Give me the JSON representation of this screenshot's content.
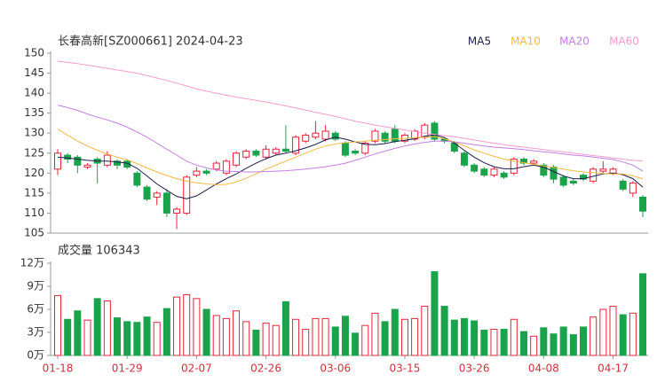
{
  "chart_data": {
    "type": "candlestick",
    "title": "长春高新[SZ000661] 2024-04-23",
    "categories": [
      "01-18",
      null,
      null,
      null,
      null,
      null,
      null,
      "01-29",
      null,
      null,
      null,
      null,
      null,
      null,
      "02-07",
      null,
      null,
      null,
      null,
      null,
      null,
      "02-26",
      null,
      null,
      null,
      null,
      null,
      null,
      "03-06",
      null,
      null,
      null,
      null,
      null,
      null,
      "03-15",
      null,
      null,
      null,
      null,
      null,
      null,
      "03-26",
      null,
      null,
      null,
      null,
      null,
      null,
      "04-08",
      null,
      null,
      null,
      null,
      null,
      null,
      "04-17",
      null,
      null,
      null
    ],
    "ylim": [
      105,
      150
    ],
    "yticks": [
      105,
      110,
      115,
      120,
      125,
      130,
      135,
      140,
      145,
      150
    ],
    "up_color": "#e8233a",
    "down_color": "#1aa34a",
    "open": [
      121,
      124.5,
      124,
      121.5,
      123.5,
      122,
      123,
      123,
      120,
      116.5,
      114,
      115,
      110,
      110,
      119.5,
      120.5,
      121,
      120,
      122,
      124,
      125.5,
      124,
      125,
      126,
      125,
      128,
      129,
      128.5,
      130,
      127.5,
      125.5,
      125,
      128,
      130,
      131,
      128,
      128.5,
      129,
      132.5,
      128.5,
      127.5,
      125,
      122,
      121,
      119.5,
      120,
      120,
      123.5,
      122.5,
      122,
      121.5,
      119,
      118,
      119.5,
      118,
      120.5,
      120,
      118,
      115,
      114
    ],
    "close": [
      125,
      123.5,
      122,
      122,
      122.5,
      124.5,
      122,
      121.5,
      117,
      113.5,
      115,
      110,
      111,
      119,
      120.5,
      120,
      122.5,
      123,
      125,
      125.5,
      124.5,
      126,
      126,
      125.5,
      129,
      129.5,
      130,
      130.5,
      128.5,
      124.5,
      125,
      127.5,
      130.5,
      128,
      128,
      129.5,
      130.5,
      132,
      128.5,
      128,
      125.5,
      122,
      120.5,
      119.5,
      121,
      119,
      123.5,
      122.5,
      123,
      119.5,
      118.5,
      117,
      117.5,
      118.5,
      121,
      121,
      121,
      116,
      117.5,
      110.5
    ],
    "high": [
      126,
      125,
      124.5,
      122.5,
      124,
      125.5,
      123.5,
      123.5,
      120.5,
      117,
      115.5,
      116,
      111.5,
      119.5,
      121.5,
      121,
      123,
      123.5,
      125.5,
      126,
      126,
      127,
      126.5,
      132,
      129.5,
      130,
      133,
      132,
      130.5,
      128,
      126,
      128,
      131,
      130.5,
      132,
      130,
      131,
      132.5,
      133,
      129,
      128,
      125.5,
      122.5,
      121.5,
      121.5,
      120.5,
      124,
      124,
      123.5,
      122.5,
      122,
      119.5,
      118.5,
      120,
      121.5,
      123,
      121.5,
      118.5,
      118,
      114.5
    ],
    "low": [
      119.5,
      122.5,
      120,
      121,
      117.5,
      121.5,
      121,
      121,
      116.5,
      113,
      112,
      109,
      106,
      109.5,
      119,
      119.5,
      120.5,
      119.5,
      121.5,
      123.5,
      124,
      123.5,
      124.5,
      125,
      124.5,
      127.5,
      128.5,
      128,
      128,
      124,
      124.5,
      124.5,
      127.5,
      127.5,
      127.5,
      127.5,
      128,
      128.5,
      128,
      127.5,
      125,
      121.5,
      120,
      119,
      119,
      118.5,
      119.5,
      122,
      122,
      119,
      117.5,
      116.5,
      117,
      118,
      117.5,
      120,
      119.5,
      115.5,
      114,
      109
    ],
    "ma": [
      {
        "name": "MA5",
        "color": "#1c1c4e",
        "values": [
          124,
          123.8,
          123.5,
          123.2,
          123,
          123,
          122.8,
          122.5,
          121.2,
          119.3,
          117.3,
          115.7,
          114.2,
          113.6,
          114.3,
          115.8,
          117.3,
          118.6,
          119.8,
          121.2,
          122.5,
          123.6,
          124.5,
          125,
          125.6,
          126.3,
          127.2,
          128.3,
          129,
          128.5,
          127.8,
          127.2,
          127.1,
          127.4,
          127.9,
          128.2,
          128.6,
          129.2,
          129.6,
          128.9,
          127.5,
          125.7,
          124,
          122.6,
          121.6,
          121.1,
          121.1,
          121.6,
          122,
          121.5,
          120.4,
          119.3,
          118.6,
          118.6,
          119.2,
          119.8,
          120,
          119.6,
          118.6,
          116.5
        ]
      },
      {
        "name": "MA10",
        "color": "#f5b942",
        "values": [
          131,
          129.5,
          128,
          126.8,
          125.7,
          124.8,
          124,
          123.3,
          122.4,
          121.3,
          120.3,
          119.4,
          118.6,
          118,
          117.6,
          117.3,
          117.1,
          117.2,
          117.8,
          118.7,
          119.8,
          121,
          122,
          123,
          124,
          125,
          126,
          126.8,
          127.3,
          127.6,
          127.8,
          128,
          128.2,
          128.4,
          128.6,
          128.7,
          128.9,
          129,
          129.1,
          128.6,
          127.8,
          126.8,
          125.8,
          125,
          124.2,
          123.5,
          123,
          122.6,
          122.2,
          121.8,
          121.4,
          121,
          120.6,
          120.3,
          120.1,
          119.9,
          119.8,
          119.8,
          119.3,
          118.6
        ]
      },
      {
        "name": "MA20",
        "color": "#c27ee0",
        "values": [
          137,
          136.4,
          135.7,
          134.8,
          134,
          133.3,
          132.5,
          131.5,
          130.3,
          129,
          127.5,
          126,
          124.5,
          123,
          122,
          121.3,
          120.8,
          120.5,
          120.4,
          120.3,
          120.3,
          120.4,
          120.5,
          120.6,
          120.8,
          121,
          121.3,
          121.6,
          122,
          122.5,
          123.2,
          124,
          124.8,
          125.5,
          126.2,
          126.8,
          127.3,
          127.7,
          128,
          128,
          127.8,
          127.5,
          127.1,
          126.8,
          126.5,
          126.3,
          126.1,
          125.9,
          125.6,
          125.3,
          125.1,
          124.8,
          124.5,
          124.3,
          124,
          123.7,
          123.4,
          122.8,
          122,
          120.5
        ]
      },
      {
        "name": "MA60",
        "color": "#f49bd0",
        "values": [
          148,
          147.7,
          147.4,
          147,
          146.6,
          146.2,
          145.8,
          145.4,
          145,
          144.4,
          143.8,
          143.2,
          142.5,
          141.8,
          141.1,
          140.5,
          140,
          139.5,
          139,
          138.6,
          138.2,
          137.8,
          137.3,
          136.8,
          136.3,
          135.8,
          135.2,
          134.7,
          134.2,
          133.6,
          133,
          132.5,
          132,
          131.6,
          131.2,
          130.8,
          130.4,
          130,
          129.7,
          129.4,
          129.1,
          128.7,
          128.3,
          127.9,
          127.5,
          127.1,
          126.8,
          126.5,
          126.2,
          125.9,
          125.6,
          125.3,
          125,
          124.7,
          124.4,
          124.1,
          123.8,
          123.5,
          123.2,
          123
        ]
      }
    ],
    "volume": {
      "title": "成交量 106343",
      "ylim": [
        0,
        12
      ],
      "yticks": [
        {
          "value": 0,
          "label": "0万"
        },
        {
          "value": 3,
          "label": "3万"
        },
        {
          "value": 6,
          "label": "6万"
        },
        {
          "value": 9,
          "label": "9万"
        },
        {
          "value": 12,
          "label": "12万"
        }
      ],
      "values": [
        7.8,
        4.7,
        5.8,
        4.6,
        7.4,
        7.1,
        4.9,
        4.4,
        4.3,
        5.0,
        4.3,
        6.1,
        7.6,
        7.9,
        7.4,
        6.0,
        5.2,
        4.8,
        5.8,
        4.4,
        3.3,
        4.2,
        3.9,
        7.0,
        4.7,
        3.4,
        4.8,
        4.8,
        3.7,
        5.1,
        2.9,
        3.9,
        5.5,
        4.4,
        6.0,
        4.7,
        4.8,
        6.4,
        10.9,
        6.4,
        4.6,
        4.8,
        4.5,
        3.3,
        3.4,
        3.4,
        4.7,
        3.1,
        2.5,
        3.6,
        2.8,
        3.7,
        2.7,
        3.7,
        5.0,
        6.0,
        6.4,
        5.3,
        5.5,
        10.6343
      ]
    }
  }
}
